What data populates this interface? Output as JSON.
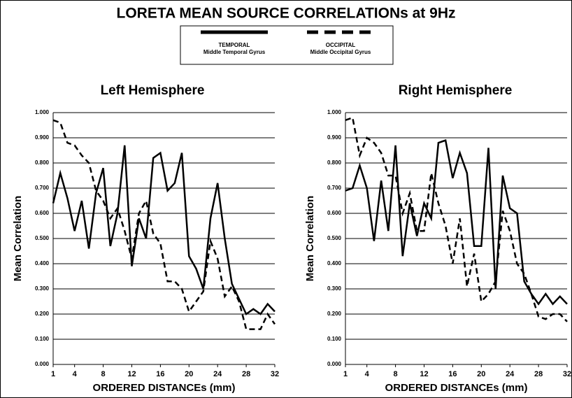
{
  "title": "LORETA MEAN SOURCE CORRELATIONs at 9Hz",
  "legend": [
    {
      "name": "TEMPORAL",
      "description": "Middle Temporal Gyrus",
      "dashed": false,
      "color": "#000000"
    },
    {
      "name": "OCCIPITAL",
      "description": "Middle Occipital Gyrus",
      "dashed": true,
      "color": "#000000"
    }
  ],
  "chart_data": [
    {
      "type": "line",
      "title": "Left Hemisphere",
      "xlabel": "ORDERED DISTANCEs (mm)",
      "ylabel": "Mean Correlation",
      "x": [
        1,
        2,
        3,
        4,
        5,
        6,
        7,
        8,
        9,
        10,
        11,
        12,
        13,
        14,
        15,
        16,
        17,
        18,
        19,
        20,
        21,
        22,
        23,
        24,
        25,
        26,
        27,
        28,
        29,
        30,
        31,
        32
      ],
      "xlim": [
        1,
        32
      ],
      "xticks": [
        1,
        4,
        8,
        12,
        16,
        20,
        24,
        28,
        32
      ],
      "ylim": [
        0,
        1
      ],
      "yticks": [
        {
          "value": 0,
          "label": "0.000"
        },
        {
          "value": 0.1,
          "label": "0.100"
        },
        {
          "value": 0.2,
          "label": "0.200"
        },
        {
          "value": 0.3,
          "label": "0.300"
        },
        {
          "value": 0.4,
          "label": "0.400"
        },
        {
          "value": 0.5,
          "label": "0.500"
        },
        {
          "value": 0.6,
          "label": "0.600"
        },
        {
          "value": 0.7,
          "label": "0.700"
        },
        {
          "value": 0.8,
          "label": "0.800"
        },
        {
          "value": 0.9,
          "label": "0.900"
        },
        {
          "value": 1,
          "label": "1.000"
        }
      ],
      "grid": true,
      "series": [
        {
          "legend": 0,
          "values": [
            0.64,
            0.76,
            0.66,
            0.53,
            0.65,
            0.46,
            0.68,
            0.78,
            0.47,
            0.6,
            0.87,
            0.39,
            0.58,
            0.5,
            0.82,
            0.84,
            0.69,
            0.72,
            0.84,
            0.43,
            0.38,
            0.3,
            0.58,
            0.72,
            0.5,
            0.32,
            0.26,
            0.2,
            0.22,
            0.2,
            0.24,
            0.21
          ]
        },
        {
          "legend": 1,
          "values": [
            0.97,
            0.96,
            0.88,
            0.87,
            0.83,
            0.8,
            0.69,
            0.65,
            0.58,
            0.62,
            0.53,
            0.42,
            0.6,
            0.65,
            0.52,
            0.48,
            0.33,
            0.33,
            0.3,
            0.21,
            0.25,
            0.29,
            0.49,
            0.42,
            0.27,
            0.31,
            0.25,
            0.14,
            0.14,
            0.14,
            0.2,
            0.16
          ]
        }
      ]
    },
    {
      "type": "line",
      "title": "Right Hemisphere",
      "xlabel": "ORDERED DISTANCEs (mm)",
      "ylabel": "Mean Correlation",
      "x": [
        1,
        2,
        3,
        4,
        5,
        6,
        7,
        8,
        9,
        10,
        11,
        12,
        13,
        14,
        15,
        16,
        17,
        18,
        19,
        20,
        21,
        22,
        23,
        24,
        25,
        26,
        27,
        28,
        29,
        30,
        31,
        32
      ],
      "xlim": [
        1,
        32
      ],
      "xticks": [
        1,
        4,
        8,
        12,
        16,
        20,
        24,
        28,
        32
      ],
      "ylim": [
        0,
        1
      ],
      "yticks": [
        {
          "value": 0,
          "label": "0.000"
        },
        {
          "value": 0.1,
          "label": "0.100"
        },
        {
          "value": 0.2,
          "label": "0.200"
        },
        {
          "value": 0.3,
          "label": "0.300"
        },
        {
          "value": 0.4,
          "label": "0.400"
        },
        {
          "value": 0.5,
          "label": "0.500"
        },
        {
          "value": 0.6,
          "label": "0.600"
        },
        {
          "value": 0.7,
          "label": "0.700"
        },
        {
          "value": 0.8,
          "label": "0.800"
        },
        {
          "value": 0.9,
          "label": "0.900"
        },
        {
          "value": 1,
          "label": "1.000"
        }
      ],
      "grid": true,
      "series": [
        {
          "legend": 0,
          "values": [
            0.69,
            0.7,
            0.79,
            0.7,
            0.49,
            0.73,
            0.53,
            0.87,
            0.43,
            0.64,
            0.51,
            0.64,
            0.58,
            0.88,
            0.89,
            0.74,
            0.84,
            0.76,
            0.47,
            0.47,
            0.86,
            0.3,
            0.75,
            0.62,
            0.6,
            0.33,
            0.28,
            0.24,
            0.28,
            0.24,
            0.27,
            0.24
          ]
        },
        {
          "legend": 1,
          "values": [
            0.97,
            0.98,
            0.83,
            0.9,
            0.88,
            0.84,
            0.75,
            0.75,
            0.6,
            0.68,
            0.53,
            0.53,
            0.76,
            0.64,
            0.55,
            0.4,
            0.58,
            0.31,
            0.44,
            0.25,
            0.28,
            0.33,
            0.61,
            0.53,
            0.4,
            0.36,
            0.28,
            0.19,
            0.18,
            0.2,
            0.2,
            0.17
          ]
        }
      ]
    }
  ]
}
